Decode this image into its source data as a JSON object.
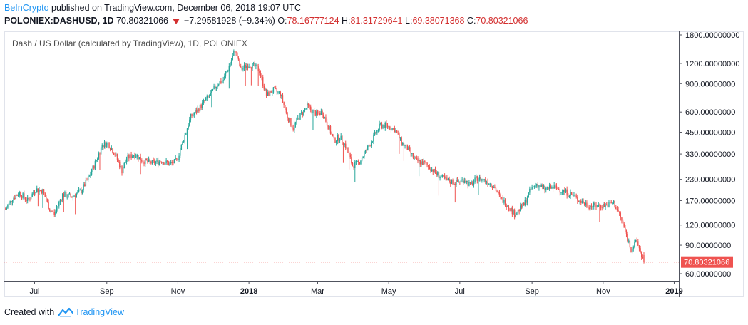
{
  "header": {
    "brand": "BeInCrypto",
    "published": "published on TradingView.com, December 06, 2018 19:07 UTC",
    "symbol": "POLONIEX:DASHUSD, 1D",
    "last": "70.80321066",
    "change": "−7.29581928 (−9.34%)",
    "o_label": "O:",
    "o_value": "78.16777124",
    "h_label": "H:",
    "h_value": "81.31729641",
    "l_label": "L:",
    "l_value": "69.38071368",
    "c_label": "C:",
    "c_value": "70.80321066"
  },
  "chart_title": "Dash / US Dollar (calculated by TradingView), 1D, POLONIEX",
  "footer": {
    "created_with": "Created with",
    "tv_name": "TradingView"
  },
  "colors": {
    "up": "#26a69a",
    "down": "#ef5350",
    "last_line": "#ef5350",
    "brand": "#2196f3"
  },
  "chart_data": {
    "type": "candlestick",
    "title": "Dash / US Dollar (calculated by TradingView), 1D, POLONIEX",
    "yscale": "log",
    "ylim": [
      60,
      1900
    ],
    "y_ticks": [
      "1800.00000000",
      "1200.00000000",
      "900.00000000",
      "600.00000000",
      "450.00000000",
      "330.00000000",
      "230.00000000",
      "170.00000000",
      "120.00000000",
      "90.00000000",
      "60.00000000"
    ],
    "y_tick_values": [
      1800,
      1200,
      900,
      600,
      450,
      330,
      230,
      170,
      120,
      90,
      60
    ],
    "x_ticks": [
      "Jul",
      "Sep",
      "Nov",
      "2018",
      "Mar",
      "May",
      "Jul",
      "Sep",
      "Nov",
      "2019"
    ],
    "x_tick_dates": [
      "2017-07-01",
      "2017-09-01",
      "2017-11-01",
      "2018-01-01",
      "2018-03-01",
      "2018-05-01",
      "2018-07-01",
      "2018-09-01",
      "2018-11-01",
      "2019-01-01"
    ],
    "x_range": [
      "2017-06-05",
      "2019-01-05"
    ],
    "last_price": 70.80321066,
    "last_price_label": "70.80321066",
    "grid": false,
    "close_trend": [
      [
        "2017-06-06",
        150
      ],
      [
        "2017-06-12",
        175
      ],
      [
        "2017-06-18",
        190
      ],
      [
        "2017-06-25",
        170
      ],
      [
        "2017-07-02",
        200
      ],
      [
        "2017-07-08",
        195
      ],
      [
        "2017-07-14",
        150
      ],
      [
        "2017-07-18",
        140
      ],
      [
        "2017-07-25",
        185
      ],
      [
        "2017-08-02",
        180
      ],
      [
        "2017-08-10",
        195
      ],
      [
        "2017-08-17",
        240
      ],
      [
        "2017-08-22",
        290
      ],
      [
        "2017-08-28",
        375
      ],
      [
        "2017-09-02",
        385
      ],
      [
        "2017-09-08",
        330
      ],
      [
        "2017-09-14",
        260
      ],
      [
        "2017-09-18",
        310
      ],
      [
        "2017-09-25",
        330
      ],
      [
        "2017-10-02",
        300
      ],
      [
        "2017-10-10",
        290
      ],
      [
        "2017-10-18",
        300
      ],
      [
        "2017-10-25",
        285
      ],
      [
        "2017-10-31",
        300
      ],
      [
        "2017-11-06",
        410
      ],
      [
        "2017-11-12",
        560
      ],
      [
        "2017-11-18",
        620
      ],
      [
        "2017-11-24",
        700
      ],
      [
        "2017-11-30",
        790
      ],
      [
        "2017-12-05",
        900
      ],
      [
        "2017-12-10",
        950
      ],
      [
        "2017-12-15",
        1150
      ],
      [
        "2017-12-20",
        1450
      ],
      [
        "2017-12-25",
        1100
      ],
      [
        "2017-12-31",
        1180
      ],
      [
        "2018-01-06",
        1150
      ],
      [
        "2018-01-10",
        1080
      ],
      [
        "2018-01-16",
        760
      ],
      [
        "2018-01-22",
        820
      ],
      [
        "2018-01-28",
        780
      ],
      [
        "2018-02-03",
        560
      ],
      [
        "2018-02-08",
        480
      ],
      [
        "2018-02-13",
        560
      ],
      [
        "2018-02-20",
        650
      ],
      [
        "2018-02-28",
        580
      ],
      [
        "2018-03-05",
        600
      ],
      [
        "2018-03-10",
        490
      ],
      [
        "2018-03-15",
        400
      ],
      [
        "2018-03-20",
        420
      ],
      [
        "2018-03-25",
        370
      ],
      [
        "2018-03-31",
        280
      ],
      [
        "2018-04-05",
        290
      ],
      [
        "2018-04-11",
        340
      ],
      [
        "2018-04-18",
        420
      ],
      [
        "2018-04-24",
        500
      ],
      [
        "2018-04-30",
        490
      ],
      [
        "2018-05-06",
        470
      ],
      [
        "2018-05-12",
        390
      ],
      [
        "2018-05-18",
        350
      ],
      [
        "2018-05-24",
        300
      ],
      [
        "2018-05-31",
        290
      ],
      [
        "2018-06-06",
        270
      ],
      [
        "2018-06-12",
        245
      ],
      [
        "2018-06-20",
        225
      ],
      [
        "2018-06-28",
        220
      ],
      [
        "2018-07-05",
        230
      ],
      [
        "2018-07-10",
        210
      ],
      [
        "2018-07-16",
        235
      ],
      [
        "2018-07-24",
        225
      ],
      [
        "2018-07-30",
        210
      ],
      [
        "2018-08-05",
        175
      ],
      [
        "2018-08-11",
        160
      ],
      [
        "2018-08-17",
        140
      ],
      [
        "2018-08-25",
        160
      ],
      [
        "2018-08-31",
        200
      ],
      [
        "2018-09-05",
        215
      ],
      [
        "2018-09-12",
        200
      ],
      [
        "2018-09-20",
        205
      ],
      [
        "2018-09-28",
        195
      ],
      [
        "2018-10-05",
        185
      ],
      [
        "2018-10-12",
        170
      ],
      [
        "2018-10-20",
        158
      ],
      [
        "2018-10-28",
        158
      ],
      [
        "2018-11-04",
        160
      ],
      [
        "2018-11-10",
        165
      ],
      [
        "2018-11-15",
        140
      ],
      [
        "2018-11-20",
        110
      ],
      [
        "2018-11-25",
        85
      ],
      [
        "2018-11-30",
        95
      ],
      [
        "2018-12-03",
        82
      ],
      [
        "2018-12-06",
        70.8
      ]
    ]
  }
}
